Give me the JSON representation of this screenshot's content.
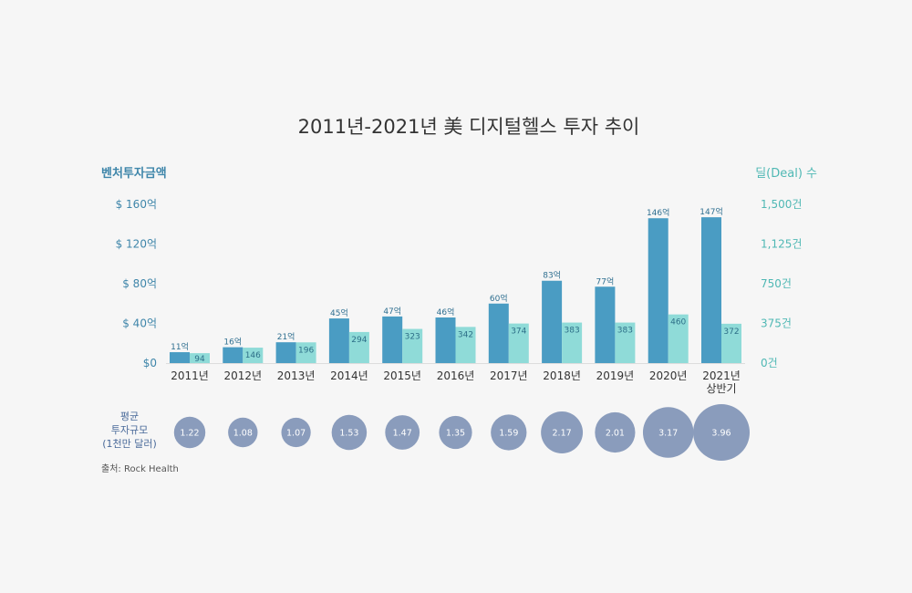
{
  "chart_data": {
    "type": "bar",
    "title": "2011년-2021년 美 디지털헬스 투자 추이",
    "ylabel": "벤처투자금액",
    "ylabel_right": "딜(Deal) 수",
    "categories": [
      "2011년",
      "2012년",
      "2013년",
      "2014년",
      "2015년",
      "2016년",
      "2017년",
      "2018년",
      "2019년",
      "2020년",
      "2021년|상반기"
    ],
    "ylim": [
      0,
      160
    ],
    "ylim_right": [
      0,
      1500
    ],
    "yticks": [
      "$0",
      "$ 40억",
      "$ 80억",
      "$ 120억",
      "$ 160억"
    ],
    "yticks_right": [
      "0건",
      "375건",
      "750건",
      "1,125건",
      "1,500건"
    ],
    "grid": false,
    "series": [
      {
        "values": [
          11,
          16,
          21,
          45,
          47,
          46,
          60,
          83,
          77,
          146,
          147
        ],
        "labels": [
          "11억",
          "16억",
          "21억",
          "45억",
          "47억",
          "46억",
          "60억",
          "83억",
          "77억",
          "146억",
          "147억"
        ],
        "color": "#4a9cc3",
        "axis": "left"
      },
      {
        "values": [
          94,
          146,
          196,
          294,
          323,
          342,
          374,
          383,
          383,
          460,
          372
        ],
        "labels": [
          "94",
          "146",
          "196",
          "294",
          "323",
          "342",
          "374",
          "383",
          "383",
          "460",
          "372"
        ],
        "color": "#8fdbd8",
        "axis": "right"
      }
    ],
    "bubbles": {
      "label": "평균|투자규모|(1천만 달러)",
      "values": [
        1.22,
        1.08,
        1.07,
        1.53,
        1.47,
        1.35,
        1.59,
        2.17,
        2.01,
        3.17,
        3.96
      ],
      "labels": [
        "1.22",
        "1.08",
        "1.07",
        "1.53",
        "1.47",
        "1.35",
        "1.59",
        "2.17",
        "2.01",
        "3.17",
        "3.96"
      ],
      "color": "#8a9cbc"
    },
    "source": "출처: Rock Health"
  }
}
